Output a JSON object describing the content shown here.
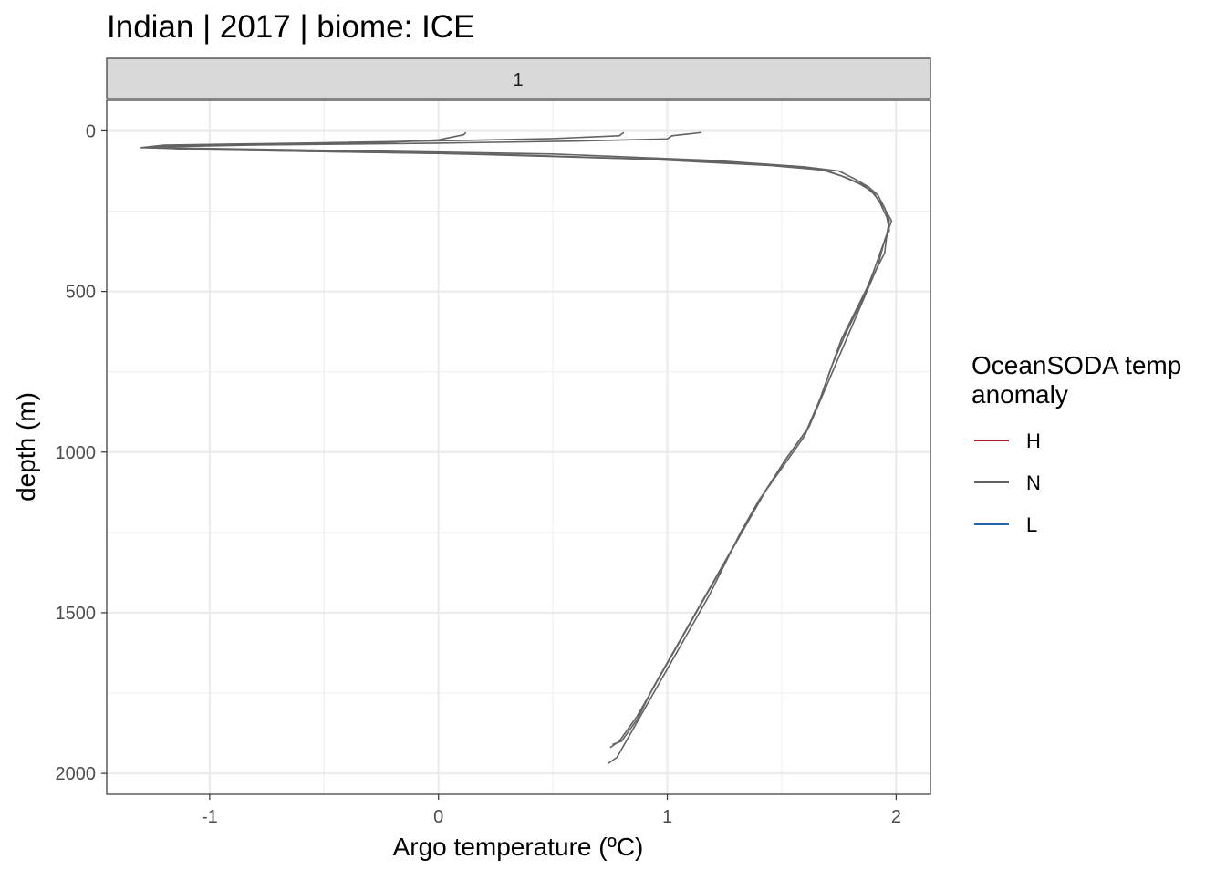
{
  "chart_data": {
    "type": "line",
    "title": "Indian | 2017 | biome: ICE",
    "facet_label": "1",
    "xlabel": "Argo temperature (ºC)",
    "ylabel": "depth (m)",
    "xlim": [
      -1.45,
      2.15
    ],
    "ylim": [
      2065,
      -95
    ],
    "y_reversed": true,
    "x_ticks": [
      -1,
      0,
      1,
      2
    ],
    "x_tick_labels": [
      "-1",
      "0",
      "1",
      "2"
    ],
    "y_ticks": [
      0,
      500,
      1000,
      1500,
      2000
    ],
    "y_tick_labels": [
      "0",
      "500",
      "1000",
      "1500",
      "2000"
    ],
    "grid": true,
    "legend": {
      "title_lines": [
        "OceanSODA temp",
        "anomaly"
      ],
      "position": "right",
      "entries": [
        {
          "label": "H",
          "color": "#B2182B"
        },
        {
          "label": "N",
          "color": "#636363"
        },
        {
          "label": "L",
          "color": "#2166AC"
        }
      ]
    },
    "series": [
      {
        "group": "N",
        "color": "#636363",
        "points": [
          [
            0.12,
            5
          ],
          [
            0.11,
            12
          ],
          [
            0.0,
            28
          ],
          [
            -0.3,
            38
          ],
          [
            -0.9,
            42
          ],
          [
            -1.2,
            46
          ],
          [
            -1.25,
            52
          ],
          [
            -0.7,
            58
          ],
          [
            0.5,
            72
          ],
          [
            1.2,
            92
          ],
          [
            1.6,
            112
          ],
          [
            1.75,
            125
          ],
          [
            1.82,
            150
          ],
          [
            1.88,
            175
          ],
          [
            1.92,
            200
          ],
          [
            1.95,
            240
          ],
          [
            1.97,
            280
          ],
          [
            1.96,
            320
          ],
          [
            1.95,
            380
          ],
          [
            1.9,
            450
          ],
          [
            1.83,
            550
          ],
          [
            1.76,
            650
          ],
          [
            1.71,
            750
          ],
          [
            1.66,
            850
          ],
          [
            1.6,
            950
          ],
          [
            1.5,
            1050
          ],
          [
            1.4,
            1150
          ],
          [
            1.32,
            1250
          ],
          [
            1.25,
            1350
          ],
          [
            1.18,
            1450
          ],
          [
            1.1,
            1550
          ],
          [
            1.02,
            1650
          ],
          [
            0.94,
            1750
          ],
          [
            0.86,
            1850
          ],
          [
            0.78,
            1950
          ],
          [
            0.74,
            1970
          ]
        ]
      },
      {
        "group": "N",
        "color": "#636363",
        "points": [
          [
            0.81,
            5
          ],
          [
            0.79,
            15
          ],
          [
            0.5,
            24
          ],
          [
            0.1,
            30
          ],
          [
            -0.6,
            38
          ],
          [
            -1.2,
            44
          ],
          [
            -1.3,
            52
          ],
          [
            -0.9,
            60
          ],
          [
            0.3,
            74
          ],
          [
            1.1,
            92
          ],
          [
            1.55,
            110
          ],
          [
            1.7,
            125
          ],
          [
            1.78,
            145
          ],
          [
            1.86,
            170
          ],
          [
            1.9,
            195
          ],
          [
            1.94,
            230
          ],
          [
            1.98,
            280
          ],
          [
            1.95,
            340
          ],
          [
            1.92,
            420
          ],
          [
            1.86,
            520
          ],
          [
            1.8,
            620
          ],
          [
            1.74,
            720
          ],
          [
            1.68,
            820
          ],
          [
            1.62,
            920
          ],
          [
            1.52,
            1020
          ],
          [
            1.43,
            1120
          ],
          [
            1.35,
            1220
          ],
          [
            1.27,
            1320
          ],
          [
            1.19,
            1420
          ],
          [
            1.11,
            1520
          ],
          [
            1.03,
            1620
          ],
          [
            0.95,
            1720
          ],
          [
            0.87,
            1820
          ],
          [
            0.79,
            1900
          ],
          [
            0.75,
            1920
          ]
        ]
      },
      {
        "group": "N",
        "color": "#636363",
        "points": [
          [
            1.15,
            5
          ],
          [
            1.02,
            15
          ],
          [
            1.0,
            25
          ],
          [
            0.6,
            32
          ],
          [
            0.0,
            38
          ],
          [
            -0.8,
            44
          ],
          [
            -1.25,
            50
          ],
          [
            -1.1,
            58
          ],
          [
            0.0,
            70
          ],
          [
            0.9,
            88
          ],
          [
            1.45,
            108
          ],
          [
            1.68,
            122
          ],
          [
            1.76,
            140
          ],
          [
            1.84,
            165
          ],
          [
            1.9,
            190
          ],
          [
            1.93,
            225
          ],
          [
            1.96,
            270
          ],
          [
            1.97,
            310
          ],
          [
            1.94,
            360
          ],
          [
            1.9,
            440
          ],
          [
            1.85,
            530
          ],
          [
            1.78,
            630
          ],
          [
            1.72,
            730
          ],
          [
            1.67,
            830
          ],
          [
            1.61,
            930
          ],
          [
            1.51,
            1030
          ],
          [
            1.42,
            1130
          ],
          [
            1.34,
            1230
          ],
          [
            1.26,
            1330
          ],
          [
            1.18,
            1430
          ],
          [
            1.1,
            1530
          ],
          [
            1.02,
            1630
          ],
          [
            0.94,
            1730
          ],
          [
            0.87,
            1830
          ],
          [
            0.8,
            1900
          ],
          [
            0.76,
            1910
          ]
        ]
      }
    ]
  }
}
